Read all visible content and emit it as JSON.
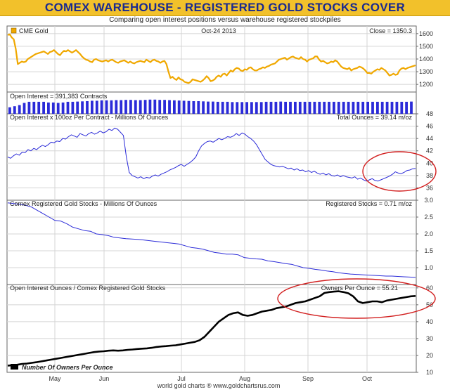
{
  "header": {
    "title": "COMEX WAREHOUSE - REGISTERED GOLD STOCKS COVER",
    "subtitle": "Comparing open interest positions versus warehouse registered stockpiles"
  },
  "footer": {
    "credit": "world gold charts ® www.goldchartsrus.com"
  },
  "colors": {
    "gold": "#f0a800",
    "blue": "#2b2bd8",
    "black": "#000000",
    "highlight": "#d22020",
    "header_bg": "#f2c12b",
    "title": "#1a2a90"
  },
  "chart_data": [
    {
      "id": "gold",
      "type": "line",
      "legend": "CME Gold",
      "date_label": "Oct-24  2013",
      "value_label": "Close = 1350.3",
      "ylim": [
        1140,
        1660
      ],
      "yticks": [
        1200,
        1300,
        1400,
        1500,
        1600
      ],
      "values": [
        1590,
        1595,
        1570,
        1555,
        1480,
        1360,
        1370,
        1380,
        1375,
        1380,
        1400,
        1410,
        1420,
        1430,
        1440,
        1445,
        1450,
        1455,
        1460,
        1450,
        1440,
        1455,
        1460,
        1470,
        1455,
        1440,
        1430,
        1450,
        1465,
        1460,
        1470,
        1460,
        1450,
        1460,
        1470,
        1455,
        1440,
        1420,
        1405,
        1395,
        1390,
        1380,
        1375,
        1395,
        1400,
        1390,
        1385,
        1380,
        1385,
        1390,
        1380,
        1390,
        1395,
        1385,
        1375,
        1370,
        1380,
        1385,
        1390,
        1380,
        1370,
        1380,
        1370,
        1365,
        1375,
        1380,
        1385,
        1380,
        1375,
        1395,
        1385,
        1375,
        1390,
        1395,
        1385,
        1380,
        1370,
        1380,
        1385,
        1360,
        1300,
        1250,
        1260,
        1245,
        1235,
        1255,
        1240,
        1235,
        1220,
        1215,
        1210,
        1220,
        1240,
        1235,
        1230,
        1225,
        1220,
        1230,
        1245,
        1265,
        1250,
        1225,
        1230,
        1240,
        1260,
        1270,
        1260,
        1280,
        1285,
        1270,
        1290,
        1310,
        1300,
        1320,
        1330,
        1325,
        1310,
        1305,
        1320,
        1315,
        1330,
        1335,
        1320,
        1310,
        1310,
        1320,
        1325,
        1335,
        1330,
        1340,
        1345,
        1355,
        1360,
        1365,
        1380,
        1395,
        1400,
        1405,
        1410,
        1395,
        1405,
        1415,
        1420,
        1410,
        1405,
        1400,
        1415,
        1400,
        1395,
        1380,
        1395,
        1400,
        1405,
        1420,
        1420,
        1395,
        1380,
        1385,
        1375,
        1365,
        1370,
        1380,
        1375,
        1390,
        1380,
        1360,
        1340,
        1330,
        1325,
        1320,
        1330,
        1310,
        1320,
        1325,
        1330,
        1340,
        1335,
        1325,
        1310,
        1290,
        1290,
        1285,
        1300,
        1310,
        1320,
        1315,
        1330,
        1320,
        1310,
        1290,
        1270,
        1275,
        1285,
        1275,
        1280,
        1310,
        1325,
        1330,
        1320,
        1330,
        1335,
        1340,
        1345,
        1350.3
      ]
    },
    {
      "id": "open_interest",
      "type": "bar",
      "label": "Open Interest = 391,383 Contracts",
      "values": [
        0.3,
        0.35,
        0.4,
        0.5,
        0.55,
        0.55,
        0.55,
        0.55,
        0.52,
        0.52,
        0.5,
        0.52,
        0.55,
        0.55,
        0.56,
        0.57,
        0.58,
        0.6,
        0.6,
        0.62,
        0.62,
        0.62,
        0.63,
        0.63,
        0.64,
        0.64,
        0.63,
        0.63,
        0.64,
        0.65,
        0.65,
        0.64,
        0.64,
        0.63,
        0.62,
        0.61,
        0.6,
        0.59,
        0.58,
        0.58,
        0.57,
        0.56,
        0.56,
        0.55,
        0.55,
        0.55,
        0.54,
        0.54,
        0.54,
        0.54,
        0.54,
        0.54,
        0.54,
        0.55,
        0.55,
        0.55,
        0.56,
        0.55,
        0.55,
        0.55,
        0.55,
        0.55,
        0.55,
        0.55,
        0.55,
        0.55,
        0.55,
        0.55,
        0.55,
        0.55,
        0.55,
        0.55,
        0.55,
        0.55,
        0.55,
        0.55,
        0.55,
        0.55,
        0.55,
        0.55,
        0.55,
        0.55,
        0.55,
        0.56
      ]
    },
    {
      "id": "oi_ounces",
      "type": "line",
      "label": "Open Interest x 100oz Per Contract - Millions Of Ounces",
      "value_label": "Total Ounces = 39.14 m/oz",
      "ylim": [
        34,
        48
      ],
      "yticks": [
        36,
        38,
        40,
        42,
        44,
        46,
        48
      ],
      "values": [
        41,
        40.8,
        41.2,
        41.5,
        41.3,
        41.8,
        41.7,
        42.2,
        42,
        42.4,
        42.2,
        42.6,
        42.9,
        42.7,
        43,
        43.4,
        43.3,
        43.6,
        43.5,
        44,
        43.9,
        44.3,
        44.6,
        44.4,
        44.2,
        44.8,
        44.6,
        44.4,
        44.8,
        45,
        44.7,
        44.9,
        45.2,
        44.9,
        45.1,
        45.5,
        45.3,
        45.7,
        45.5,
        45,
        44.5,
        41,
        38.5,
        38,
        37.8,
        37.6,
        37.8,
        37.5,
        37.7,
        37.6,
        37.9,
        38.1,
        37.9,
        38.2,
        38.4,
        38.6,
        38.9,
        39.1,
        39.3,
        39.6,
        39.8,
        39.5,
        39.8,
        40.1,
        40.5,
        41,
        42,
        42.8,
        43.2,
        43.5,
        43.6,
        43.4,
        43.7,
        44,
        43.8,
        44,
        44.3,
        44.2,
        44.4,
        44.8,
        44.5,
        44.9,
        44.7,
        44.3,
        44,
        43.6,
        43,
        42.2,
        41.4,
        40.6,
        40.2,
        39.8,
        39.6,
        39.5,
        39.4,
        39.5,
        39.3,
        39.1,
        39.2,
        38.9,
        39.1,
        38.8,
        38.9,
        38.6,
        38.8,
        38.5,
        38.7,
        38.4,
        38.2,
        38.4,
        38.1,
        38.3,
        38,
        37.9,
        38.1,
        37.8,
        38,
        37.8,
        37.7,
        37.6,
        37.8,
        37.4,
        37.6,
        37.3,
        37.1,
        37.3,
        37.5,
        37.2,
        37.1,
        37.3,
        37.5,
        37.7,
        37.9,
        38.2,
        38.6,
        38.4,
        38.3,
        38.5,
        38.8,
        38.9,
        39.1,
        39.14
      ]
    },
    {
      "id": "registered",
      "type": "line",
      "label": "Comex Registered Gold Stocks - Millions Of Ounces",
      "value_label": "Registered Stocks = 0.71 m/oz",
      "ylim": [
        0.5,
        3.0
      ],
      "yticks": [
        1.0,
        1.5,
        2.0,
        2.5,
        3.0
      ],
      "values": [
        2.92,
        2.9,
        2.88,
        2.85,
        2.8,
        2.7,
        2.6,
        2.5,
        2.4,
        2.38,
        2.3,
        2.2,
        2.15,
        2.1,
        2.08,
        2.0,
        1.98,
        1.95,
        1.9,
        1.88,
        1.86,
        1.85,
        1.84,
        1.82,
        1.8,
        1.78,
        1.76,
        1.74,
        1.72,
        1.7,
        1.65,
        1.6,
        1.58,
        1.55,
        1.5,
        1.45,
        1.43,
        1.4,
        1.4,
        1.38,
        1.3,
        1.28,
        1.26,
        1.25,
        1.2,
        1.18,
        1.15,
        1.12,
        1.1,
        1.05,
        1.0,
        0.98,
        0.95,
        0.93,
        0.9,
        0.88,
        0.85,
        0.83,
        0.81,
        0.8,
        0.79,
        0.78,
        0.77,
        0.76,
        0.75,
        0.75,
        0.74,
        0.73,
        0.72,
        0.71
      ]
    },
    {
      "id": "owners",
      "type": "line",
      "label": "Open Interest Ounces / Comex Registered Gold Stocks",
      "value_label": "Owners Per Ounce = 55.21",
      "legend": "Number Of Owners Per Ounce",
      "ylim": [
        10,
        62
      ],
      "yticks": [
        10,
        20,
        30,
        40,
        50,
        60
      ],
      "values": [
        14,
        14.2,
        14.5,
        15,
        15.2,
        15.6,
        16,
        16.5,
        17,
        17.5,
        18,
        18.5,
        19,
        19.5,
        20,
        20.5,
        21,
        21.5,
        22,
        22.3,
        22.5,
        22.8,
        23,
        22.8,
        23,
        23.3,
        23.5,
        23.8,
        24,
        24.2,
        24.5,
        25,
        25.3,
        25.5,
        25.8,
        26,
        26.5,
        27,
        27.5,
        28,
        29,
        31,
        34,
        37,
        40,
        42,
        44,
        45,
        45.5,
        44,
        43.5,
        44,
        45,
        46,
        46.5,
        47,
        48,
        48.5,
        49,
        50,
        51,
        51.5,
        52,
        53,
        54,
        55,
        57,
        57.5,
        57.8,
        58,
        57.5,
        56.8,
        55,
        52,
        51,
        51.5,
        52,
        52,
        51.5,
        52.5,
        53,
        53.5,
        54,
        54.5,
        55,
        55.21
      ]
    }
  ],
  "x_axis": {
    "months": [
      "May",
      "Jun",
      "Jul",
      "Aug",
      "Sep",
      "Oct"
    ]
  }
}
